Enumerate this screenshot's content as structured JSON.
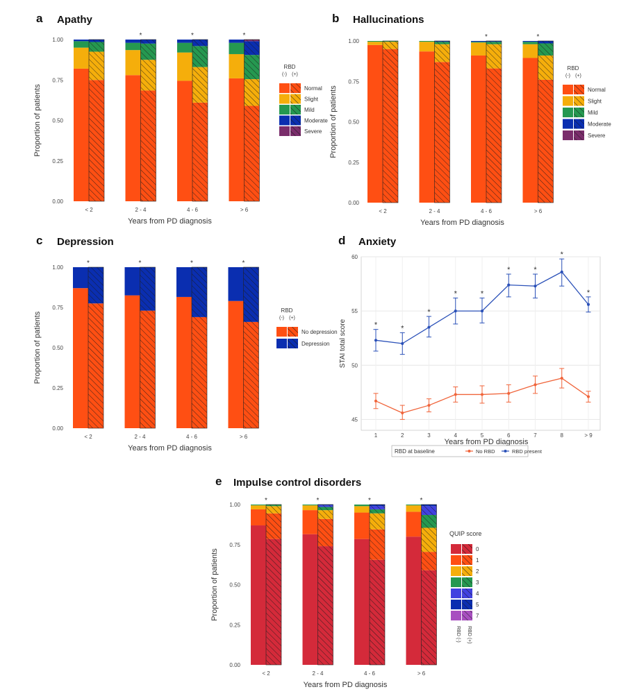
{
  "colors": {
    "normal": "#FF4F13",
    "slight": "#F5AE0B",
    "mild": "#259850",
    "moderate": "#0A2EB0",
    "severe": "#7A2D6B",
    "no_depression": "#FF4F13",
    "depression": "#0A2EB0",
    "quip": [
      "#D42A3A",
      "#FF4F13",
      "#F5AE0B",
      "#259850",
      "#4141E0",
      "#0A2EB0",
      "#A84FC0"
    ],
    "no_rbd": "#F0643A",
    "rbd_present": "#2A50B8"
  },
  "chart_data": [
    {
      "id": "apathy",
      "panel": "a",
      "type": "bar",
      "stacked": true,
      "title": "Apathy",
      "xlabel": "Years from PD diagnosis",
      "ylabel": "Proportion of patients",
      "ylim": [
        0,
        1
      ],
      "yticks": [
        "0.00",
        "0.25",
        "0.50",
        "0.75",
        "1.00"
      ],
      "categories": [
        "< 2",
        "2 - 4",
        "4 - 6",
        "> 6"
      ],
      "legend_title": "RBD",
      "legend_sub": [
        "(-)",
        "(+)"
      ],
      "levels": [
        "Normal",
        "Slight",
        "Mild",
        "Moderate",
        "Severe"
      ],
      "level_colors": [
        "normal",
        "slight",
        "mild",
        "moderate",
        "severe"
      ],
      "significance": [
        "",
        "*",
        "*",
        "*"
      ],
      "rbd_neg": [
        [
          0.82,
          0.13,
          0.04,
          0.01,
          0.0
        ],
        [
          0.78,
          0.155,
          0.045,
          0.02,
          0.0
        ],
        [
          0.745,
          0.175,
          0.06,
          0.02,
          0.0
        ],
        [
          0.76,
          0.15,
          0.07,
          0.02,
          0.0
        ]
      ],
      "rbd_pos": [
        [
          0.75,
          0.175,
          0.06,
          0.015,
          0.0
        ],
        [
          0.685,
          0.19,
          0.1,
          0.025,
          0.0
        ],
        [
          0.61,
          0.22,
          0.13,
          0.04,
          0.0
        ],
        [
          0.59,
          0.165,
          0.15,
          0.085,
          0.01
        ]
      ]
    },
    {
      "id": "hallucinations",
      "panel": "b",
      "type": "bar",
      "stacked": true,
      "title": "Hallucinations",
      "xlabel": "Years from PD diagnosis",
      "ylabel": "Proportion of patients",
      "ylim": [
        0,
        1
      ],
      "yticks": [
        "0.00",
        "0.25",
        "0.50",
        "0.75",
        "1.00"
      ],
      "categories": [
        "< 2",
        "2 - 4",
        "4 - 6",
        "> 6"
      ],
      "legend_title": "RBD",
      "legend_sub": [
        "(-)",
        "(+)"
      ],
      "levels": [
        "Normal",
        "Slight",
        "Mild",
        "Moderate",
        "Severe"
      ],
      "level_colors": [
        "normal",
        "slight",
        "mild",
        "moderate",
        "severe"
      ],
      "significance": [
        "",
        "",
        "*",
        "*"
      ],
      "rbd_neg": [
        [
          0.975,
          0.02,
          0.005,
          0.0,
          0.0
        ],
        [
          0.935,
          0.06,
          0.005,
          0.0,
          0.0
        ],
        [
          0.91,
          0.08,
          0.005,
          0.005,
          0.0
        ],
        [
          0.895,
          0.085,
          0.015,
          0.005,
          0.0
        ]
      ],
      "rbd_pos": [
        [
          0.95,
          0.045,
          0.005,
          0.0,
          0.0
        ],
        [
          0.87,
          0.11,
          0.015,
          0.005,
          0.0
        ],
        [
          0.83,
          0.15,
          0.015,
          0.005,
          0.0
        ],
        [
          0.76,
          0.15,
          0.075,
          0.015,
          0.0
        ]
      ]
    },
    {
      "id": "depression",
      "panel": "c",
      "type": "bar",
      "stacked": true,
      "title": "Depression",
      "xlabel": "Years from PD diagnosis",
      "ylabel": "Proportion of patients",
      "ylim": [
        0,
        1
      ],
      "yticks": [
        "0.00",
        "0.25",
        "0.50",
        "0.75",
        "1.00"
      ],
      "categories": [
        "< 2",
        "2 - 4",
        "4 - 6",
        "> 6"
      ],
      "legend_title": "RBD",
      "legend_sub": [
        "(-)",
        "(+)"
      ],
      "levels": [
        "No depression",
        "Depression"
      ],
      "level_colors": [
        "no_depression",
        "depression"
      ],
      "significance": [
        "*",
        "*",
        "*",
        "*"
      ],
      "rbd_neg": [
        [
          0.87,
          0.13
        ],
        [
          0.825,
          0.175
        ],
        [
          0.815,
          0.185
        ],
        [
          0.79,
          0.21
        ]
      ],
      "rbd_pos": [
        [
          0.775,
          0.225
        ],
        [
          0.73,
          0.27
        ],
        [
          0.69,
          0.31
        ],
        [
          0.66,
          0.34
        ]
      ]
    },
    {
      "id": "anxiety",
      "panel": "d",
      "type": "line",
      "title": "Anxiety",
      "xlabel": "Years from PD diagnosis",
      "ylabel": "STAI total score",
      "ylim": [
        44,
        60
      ],
      "yticks": [
        45,
        50,
        55,
        60
      ],
      "x": [
        "1",
        "2",
        "3",
        "4",
        "5",
        "6",
        "7",
        "8",
        "> 9"
      ],
      "legend_title": "RBD at baseline",
      "series": [
        {
          "name": "No RBD",
          "color": "no_rbd",
          "values": [
            46.7,
            45.6,
            46.3,
            47.3,
            47.3,
            47.4,
            48.2,
            48.8,
            47.1
          ],
          "lower": [
            46.0,
            45.0,
            45.7,
            46.6,
            46.5,
            46.6,
            47.4,
            47.9,
            46.6
          ],
          "upper": [
            47.4,
            46.3,
            46.9,
            48.0,
            48.1,
            48.2,
            49.0,
            49.7,
            47.6
          ]
        },
        {
          "name": "RBD present",
          "color": "rbd_present",
          "values": [
            52.3,
            52.0,
            53.5,
            55.0,
            55.0,
            57.4,
            57.3,
            58.6,
            55.6
          ],
          "lower": [
            51.3,
            51.0,
            52.6,
            53.8,
            53.9,
            56.3,
            56.2,
            57.3,
            54.9
          ],
          "upper": [
            53.3,
            53.0,
            54.5,
            56.2,
            56.2,
            58.4,
            58.4,
            59.8,
            56.3
          ]
        }
      ],
      "significance": [
        "*",
        "*",
        "*",
        "*",
        "*",
        "*",
        "*",
        "*",
        "*"
      ]
    },
    {
      "id": "icd",
      "panel": "e",
      "type": "bar",
      "stacked": true,
      "title": "Impulse control disorders",
      "xlabel": "Years from PD diagnosis",
      "ylabel": "Proportion of patients",
      "ylim": [
        0,
        1
      ],
      "yticks": [
        "0.00",
        "0.25",
        "0.50",
        "0.75",
        "1.00"
      ],
      "categories": [
        "< 2",
        "2 - 4",
        "4 - 6",
        "> 6"
      ],
      "legend_title": "QUIP score",
      "legend_sub": [
        "RBD (-)",
        "RBD (+)"
      ],
      "levels": [
        "0",
        "1",
        "2",
        "3",
        "4",
        "5",
        "7"
      ],
      "significance": [
        "*",
        "*",
        "*",
        "*"
      ],
      "rbd_neg": [
        [
          0.87,
          0.1,
          0.025,
          0.005,
          0.0,
          0.0,
          0.0
        ],
        [
          0.815,
          0.15,
          0.03,
          0.005,
          0.0,
          0.0,
          0.0
        ],
        [
          0.785,
          0.165,
          0.04,
          0.01,
          0.0,
          0.0,
          0.0
        ],
        [
          0.8,
          0.155,
          0.04,
          0.005,
          0.0,
          0.0,
          0.0
        ]
      ],
      "rbd_pos": [
        [
          0.785,
          0.16,
          0.045,
          0.01,
          0.0,
          0.0,
          0.0
        ],
        [
          0.74,
          0.17,
          0.055,
          0.02,
          0.01,
          0.005,
          0.0
        ],
        [
          0.655,
          0.19,
          0.1,
          0.025,
          0.02,
          0.01,
          0.0
        ],
        [
          0.59,
          0.115,
          0.15,
          0.08,
          0.055,
          0.01,
          0.0
        ]
      ]
    }
  ]
}
